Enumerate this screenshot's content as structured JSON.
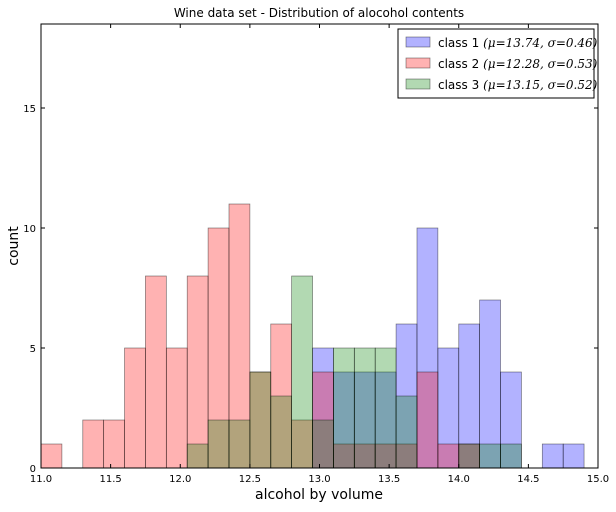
{
  "chart_data": {
    "type": "bar",
    "title": "Wine data set - Distribution of alocohol contents",
    "xlabel": "alcohol by volume",
    "ylabel": "count",
    "xlim": [
      11.0,
      15.0
    ],
    "ylim": [
      0,
      18.5
    ],
    "xticks": [
      "11.0",
      "11.5",
      "12.0",
      "12.5",
      "13.0",
      "13.5",
      "14.0",
      "14.5",
      "15.0"
    ],
    "yticks": [
      "0",
      "5",
      "10",
      "15"
    ],
    "bin_edges": [
      11.0,
      11.15,
      11.3,
      11.45,
      11.6,
      11.75,
      11.9,
      12.05,
      12.2,
      12.35,
      12.5,
      12.65,
      12.8,
      12.95,
      13.1,
      13.25,
      13.4,
      13.55,
      13.7,
      13.85,
      14.0,
      14.15,
      14.3,
      14.45,
      14.6,
      14.75,
      14.9
    ],
    "legend_position": "top-right",
    "grid": false,
    "series": [
      {
        "name": "class 1",
        "legend_mu": "13.74",
        "legend_sigma": "0.46",
        "color": "#0000ff",
        "values": [
          0,
          0,
          0,
          0,
          0,
          0,
          0,
          0,
          0,
          0,
          0,
          0,
          0,
          5,
          4,
          4,
          4,
          6,
          10,
          5,
          6,
          7,
          4,
          0,
          1,
          1
        ]
      },
      {
        "name": "class 2",
        "legend_mu": "12.28",
        "legend_sigma": "0.53",
        "color": "#ff0000",
        "values": [
          1,
          0,
          2,
          2,
          5,
          8,
          5,
          8,
          10,
          11,
          4,
          6,
          2,
          4,
          1,
          1,
          1,
          1,
          4,
          1,
          1,
          0,
          0,
          0,
          0,
          0
        ]
      },
      {
        "name": "class 3",
        "legend_mu": "13.15",
        "legend_sigma": "0.52",
        "color": "#008000",
        "values": [
          0,
          0,
          0,
          0,
          0,
          0,
          0,
          1,
          2,
          2,
          4,
          3,
          8,
          2,
          5,
          5,
          5,
          3,
          0,
          0,
          1,
          1,
          1,
          0,
          0,
          0
        ]
      }
    ]
  }
}
